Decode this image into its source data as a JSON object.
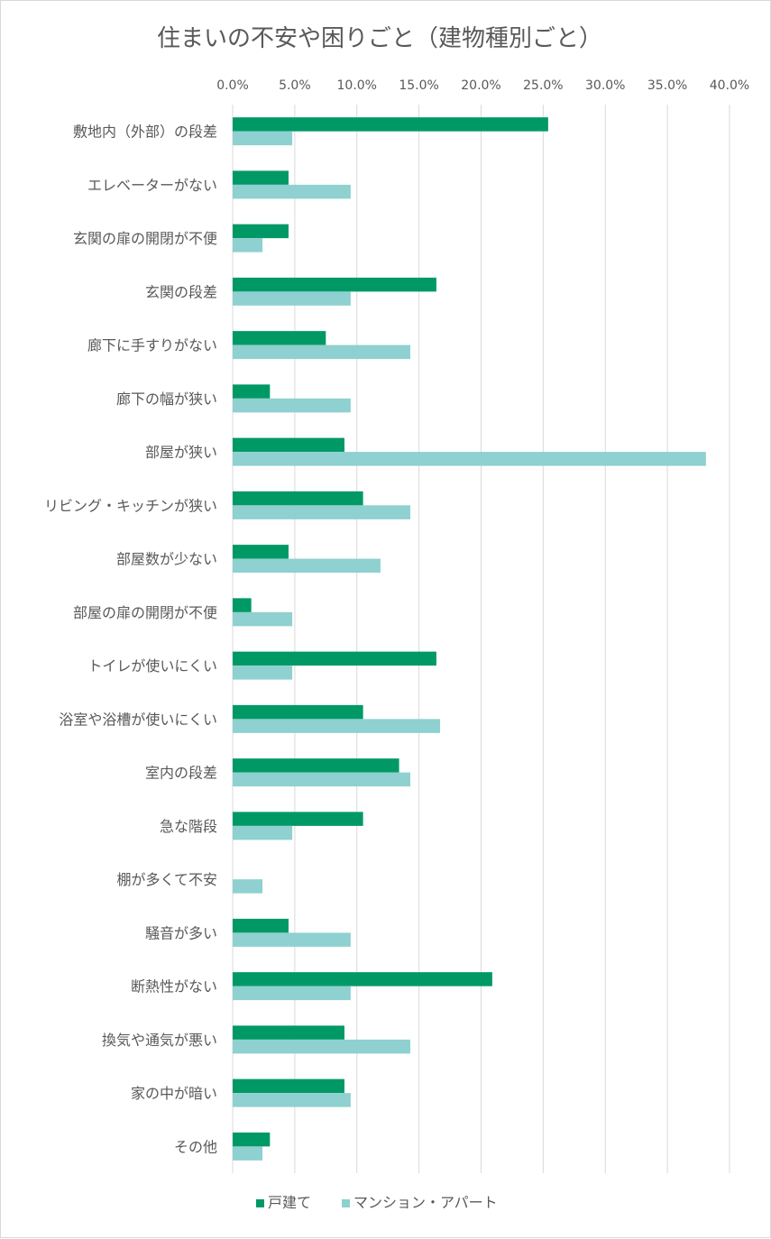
{
  "chart_data": {
    "type": "bar",
    "orientation": "horizontal",
    "title": "住まいの不安や困りごと（建物種別ごと）",
    "x_axis": {
      "position": "top",
      "min": 0,
      "max": 0.4,
      "tick_labels": [
        "0.0%",
        "5.0%",
        "10.0%",
        "15.0%",
        "20.0%",
        "25.0%",
        "30.0%",
        "35.0%",
        "40.0%"
      ]
    },
    "grid": true,
    "legend": "bottom",
    "categories": [
      "敷地内（外部）の段差",
      "エレベーターがない",
      "玄関の扉の開閉が不便",
      "玄関の段差",
      "廊下に手すりがない",
      "廊下の幅が狭い",
      "部屋が狭い",
      "リビング・キッチンが狭い",
      "部屋数が少ない",
      "部屋の扉の開閉が不便",
      "トイレが使いにくい",
      "浴室や浴槽が使いにくい",
      "室内の段差",
      "急な階段",
      "棚が多くて不安",
      "騒音が多い",
      "断熱性がない",
      "換気や通気が悪い",
      "家の中が暗い",
      "その他"
    ],
    "series": [
      {
        "name": "戸建て",
        "color": "#009966",
        "values": [
          0.254,
          0.045,
          0.045,
          0.164,
          0.075,
          0.03,
          0.09,
          0.105,
          0.045,
          0.015,
          0.164,
          0.105,
          0.134,
          0.105,
          0.0,
          0.045,
          0.209,
          0.09,
          0.09,
          0.03
        ]
      },
      {
        "name": "マンション・アパート",
        "color": "#8fd0d0",
        "values": [
          0.048,
          0.095,
          0.024,
          0.095,
          0.143,
          0.095,
          0.381,
          0.143,
          0.119,
          0.048,
          0.048,
          0.167,
          0.143,
          0.048,
          0.024,
          0.095,
          0.095,
          0.143,
          0.095,
          0.024
        ]
      }
    ]
  }
}
